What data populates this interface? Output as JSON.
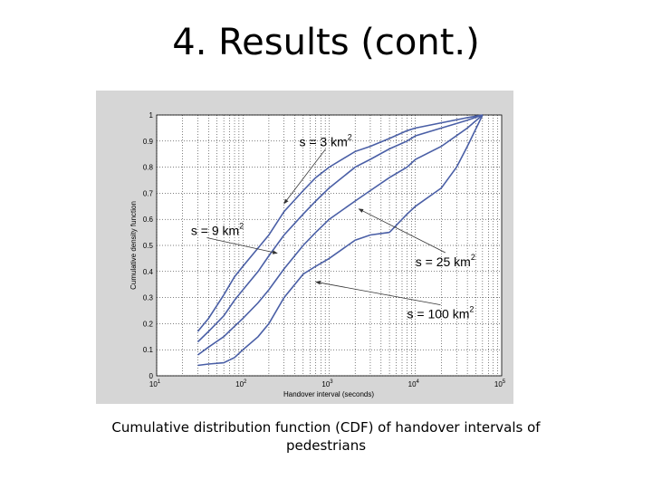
{
  "slide": {
    "title": "4. Results (cont.)",
    "caption": "Cumulative distribution function (CDF) of handover intervals of pedestrians"
  },
  "chart_data": {
    "type": "line",
    "xlabel": "Handover interval (seconds)",
    "ylabel": "Cumulative density function",
    "xscale": "log",
    "xlim": [
      10,
      100000
    ],
    "ylim": [
      0,
      1
    ],
    "grid": true,
    "x_ticks": [
      {
        "value": 10,
        "base": "10",
        "exp": "1"
      },
      {
        "value": 100,
        "base": "10",
        "exp": "2"
      },
      {
        "value": 1000,
        "base": "10",
        "exp": "3"
      },
      {
        "value": 10000,
        "base": "10",
        "exp": "4"
      },
      {
        "value": 100000,
        "base": "10",
        "exp": "5"
      }
    ],
    "y_ticks": [
      "0",
      "0.1",
      "0.2",
      "0.3",
      "0.4",
      "0.5",
      "0.6",
      "0.7",
      "0.8",
      "0.9",
      "1"
    ],
    "line_color": "#4a5fa6",
    "series": [
      {
        "x": [
          30,
          40,
          60,
          80,
          100,
          150,
          200,
          300,
          500,
          700,
          1000,
          2000,
          3000,
          5000,
          8000,
          10000,
          20000,
          40000,
          60000
        ],
        "y": [
          0.17,
          0.22,
          0.31,
          0.38,
          0.42,
          0.49,
          0.54,
          0.63,
          0.71,
          0.76,
          0.8,
          0.86,
          0.88,
          0.91,
          0.94,
          0.95,
          0.97,
          0.99,
          1.0
        ]
      },
      {
        "x": [
          30,
          40,
          60,
          80,
          100,
          150,
          200,
          300,
          500,
          700,
          1000,
          2000,
          3000,
          5000,
          8000,
          10000,
          20000,
          40000,
          60000
        ],
        "y": [
          0.13,
          0.17,
          0.23,
          0.29,
          0.33,
          0.4,
          0.46,
          0.54,
          0.62,
          0.67,
          0.72,
          0.8,
          0.83,
          0.87,
          0.9,
          0.92,
          0.95,
          0.98,
          1.0
        ]
      },
      {
        "x": [
          30,
          40,
          60,
          80,
          100,
          150,
          200,
          300,
          500,
          700,
          1000,
          2000,
          3000,
          5000,
          8000,
          10000,
          20000,
          40000,
          60000
        ],
        "y": [
          0.08,
          0.11,
          0.15,
          0.19,
          0.22,
          0.28,
          0.33,
          0.41,
          0.5,
          0.55,
          0.6,
          0.67,
          0.71,
          0.76,
          0.8,
          0.83,
          0.88,
          0.95,
          1.0
        ]
      },
      {
        "x": [
          30,
          40,
          60,
          80,
          100,
          150,
          200,
          300,
          500,
          700,
          1000,
          2000,
          3000,
          5000,
          8000,
          10000,
          20000,
          30000,
          40000,
          60000
        ],
        "y": [
          0.04,
          0.045,
          0.05,
          0.07,
          0.1,
          0.15,
          0.2,
          0.3,
          0.39,
          0.42,
          0.45,
          0.52,
          0.54,
          0.55,
          0.62,
          0.65,
          0.72,
          0.8,
          0.88,
          1.0
        ]
      }
    ],
    "annotations": [
      {
        "text": "s = 3 km",
        "sup": "2",
        "x": 450,
        "y": 0.88,
        "arrow_to": {
          "x": 300,
          "y": 0.66
        }
      },
      {
        "text": "s = 9 km",
        "sup": "2",
        "x": 25,
        "y": 0.54,
        "arrow_to": {
          "x": 250,
          "y": 0.47
        }
      },
      {
        "text": "s = 25 km",
        "sup": "2",
        "x": 10000,
        "y": 0.42,
        "arrow_to": {
          "x": 2200,
          "y": 0.64
        }
      },
      {
        "text": "s = 100 km",
        "sup": "2",
        "x": 8000,
        "y": 0.22,
        "arrow_to": {
          "x": 700,
          "y": 0.36
        }
      }
    ]
  }
}
